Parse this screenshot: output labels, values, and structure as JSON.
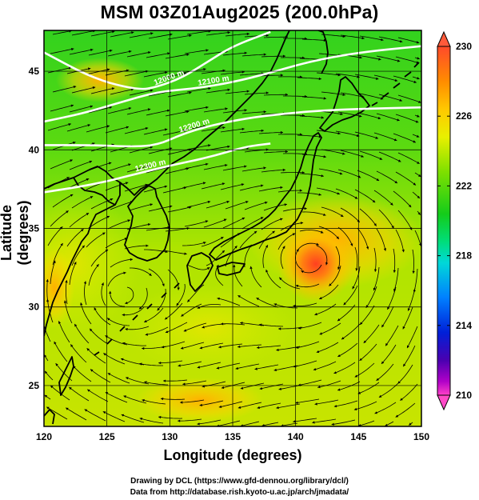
{
  "title": "MSM 03Z01Aug2025 (200.0hPa)",
  "xlabel": "Longitude (degrees)",
  "ylabel": "Latitude  (degrees)",
  "credits": [
    "Drawing by DCL (https://www.gfd-dennou.org/library/dcl/)",
    "Data from http://database.rish.kyoto-u.ac.jp/arch/jmadata/"
  ],
  "map": {
    "lon_range": [
      120,
      150
    ],
    "lat_range": [
      22.4,
      47.6
    ],
    "lon_ticks": [
      {
        "value": 120,
        "label": "120"
      },
      {
        "value": 125,
        "label": "125"
      },
      {
        "value": 130,
        "label": "130"
      },
      {
        "value": 135,
        "label": "135"
      },
      {
        "value": 140,
        "label": "140"
      },
      {
        "value": 145,
        "label": "145"
      },
      {
        "value": 150,
        "label": "150"
      }
    ],
    "lat_ticks": [
      {
        "value": 25,
        "label": "25"
      },
      {
        "value": 30,
        "label": "30"
      },
      {
        "value": 35,
        "label": "35"
      },
      {
        "value": 40,
        "label": "40"
      },
      {
        "value": 45,
        "label": "45"
      }
    ],
    "contours": [
      {
        "label": "12000 m",
        "points": [
          [
            120,
            46.2
          ],
          [
            124,
            44.5
          ],
          [
            127.5,
            43.8
          ],
          [
            129,
            44
          ],
          [
            131,
            44.6
          ],
          [
            133,
            45.6
          ],
          [
            135,
            46.6
          ],
          [
            138,
            47.5
          ]
        ]
      },
      {
        "label": "12100 m",
        "points": [
          [
            120,
            41.8
          ],
          [
            123,
            42.3
          ],
          [
            126,
            43
          ],
          [
            129,
            43.7
          ],
          [
            132,
            43.9
          ],
          [
            135,
            44.3
          ],
          [
            138,
            44.9
          ],
          [
            141,
            45.6
          ],
          [
            145,
            46.2
          ],
          [
            150,
            46.6
          ]
        ]
      },
      {
        "label": "12200 m",
        "points": [
          [
            120,
            40.3
          ],
          [
            124,
            40.3
          ],
          [
            127,
            40.2
          ],
          [
            129,
            40.3
          ],
          [
            131,
            41
          ],
          [
            133,
            41.5
          ],
          [
            136,
            42
          ],
          [
            139,
            42.3
          ],
          [
            142,
            42.5
          ],
          [
            145,
            42.6
          ],
          [
            150,
            42.7
          ]
        ]
      },
      {
        "label": "12300 m",
        "points": [
          [
            120,
            37.3
          ],
          [
            124,
            37.8
          ],
          [
            127,
            38.4
          ],
          [
            130,
            39
          ],
          [
            133,
            39.5
          ],
          [
            136,
            40.2
          ],
          [
            138,
            40.4
          ]
        ]
      }
    ],
    "anticyclone_centers": [
      [
        126.1,
        30.8
      ],
      [
        141.4,
        33.1
      ]
    ]
  },
  "colorbar": {
    "min": 210,
    "max": 230,
    "tick_labels": [
      "230",
      "226",
      "222",
      "218",
      "214",
      "210"
    ],
    "colors": [
      "#ff4a2a",
      "#ff8c00",
      "#ffc800",
      "#e8f000",
      "#7ee000",
      "#14cc1a",
      "#00dd7a",
      "#00d8d8",
      "#0080ff",
      "#0020d8",
      "#4a00b0",
      "#b000c8",
      "#ff40c8"
    ]
  }
}
